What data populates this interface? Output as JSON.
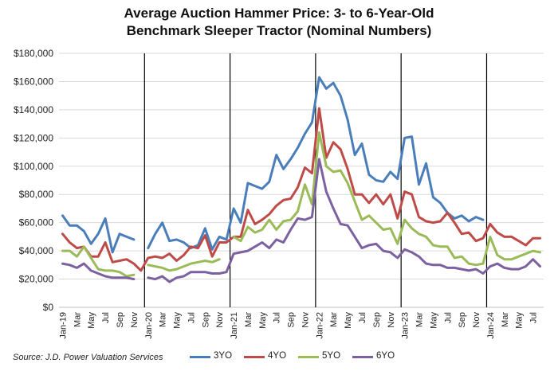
{
  "chart_data": {
    "type": "line",
    "title_lines": [
      "Average Auction Hammer Price: 3- to 6-Year-Old",
      "Benchmark Sleeper Tractor (Nominal Numbers)"
    ],
    "source": "Source: J.D. Power Valuation Services",
    "ylim": [
      0,
      180000
    ],
    "yticks": [
      "$0",
      "$20,000",
      "$40,000",
      "$60,000",
      "$80,000",
      "$100,000",
      "$120,000",
      "$140,000",
      "$160,000",
      "$180,000"
    ],
    "ytick_values": [
      0,
      20000,
      40000,
      60000,
      80000,
      100000,
      120000,
      140000,
      160000,
      180000
    ],
    "grid": "horizontal",
    "legend_position": "bottom",
    "x_categories": [
      "Jan-19",
      "Feb",
      "Mar",
      "Apr",
      "May",
      "Jun",
      "Jul",
      "Aug",
      "Sep",
      "Oct",
      "Nov",
      "Dec",
      "Jan-20",
      "Feb",
      "Mar",
      "Apr",
      "May",
      "Jun",
      "Jul",
      "Aug",
      "Sep",
      "Oct",
      "Nov",
      "Dec",
      "Jan-21",
      "Feb",
      "Mar",
      "Apr",
      "May",
      "Jun",
      "Jul",
      "Aug",
      "Sep",
      "Oct",
      "Nov",
      "Dec",
      "Jan-22",
      "Feb",
      "Mar",
      "Apr",
      "May",
      "Jun",
      "Jul",
      "Aug",
      "Sep",
      "Oct",
      "Nov",
      "Dec",
      "Jan-23",
      "Feb",
      "Mar",
      "Apr",
      "May",
      "Jun",
      "Jul",
      "Aug",
      "Sep",
      "Oct",
      "Nov",
      "Dec",
      "Jan-24",
      "Feb",
      "Mar",
      "Apr",
      "May",
      "Jun",
      "Jul",
      "Aug"
    ],
    "x_tick_labels": [
      "Jan-19",
      "Mar",
      "May",
      "Jul",
      "Sep",
      "Nov",
      "Jan-20",
      "Mar",
      "May",
      "Jul",
      "Sep",
      "Nov",
      "Jan-21",
      "Mar",
      "May",
      "Jul",
      "Sep",
      "Nov",
      "Jan-22",
      "Mar",
      "May",
      "Jul",
      "Sep",
      "Nov",
      "Jan-23",
      "Mar",
      "May",
      "Jul",
      "Sep",
      "Nov",
      "Jan-24",
      "Mar",
      "May",
      "Jul"
    ],
    "year_separators": [
      "Jan-20",
      "Jan-21",
      "Jan-22",
      "Jan-23",
      "Jan-24"
    ],
    "series": [
      {
        "name": "3YO",
        "color": "#4A7EBB",
        "values": [
          65000,
          58000,
          58000,
          54000,
          45000,
          52000,
          63000,
          39000,
          52000,
          50000,
          48000,
          null,
          42000,
          52000,
          60000,
          47000,
          48000,
          46000,
          42000,
          44000,
          56000,
          41000,
          50000,
          48000,
          70000,
          60000,
          88000,
          86000,
          84000,
          89000,
          108000,
          98000,
          105000,
          113000,
          123000,
          131000,
          163000,
          155000,
          159000,
          150000,
          133000,
          108000,
          116000,
          94000,
          90000,
          89000,
          96000,
          91000,
          120000,
          121000,
          87000,
          102000,
          78000,
          74000,
          67000,
          63000,
          65000,
          61000,
          64000,
          62000,
          null,
          null,
          null,
          null,
          null,
          null,
          null,
          null
        ]
      },
      {
        "name": "4YO",
        "color": "#BE4B48",
        "values": [
          52000,
          46000,
          42000,
          43000,
          36000,
          36000,
          46000,
          32000,
          33000,
          34000,
          31000,
          26000,
          35000,
          36000,
          35000,
          38000,
          33000,
          37000,
          43000,
          42000,
          51000,
          36000,
          46000,
          46000,
          50000,
          50000,
          69000,
          59000,
          62000,
          66000,
          72000,
          76000,
          77000,
          85000,
          99000,
          95000,
          141000,
          106000,
          117000,
          112000,
          98000,
          80000,
          80000,
          74000,
          80000,
          73000,
          80000,
          63000,
          82000,
          80000,
          64000,
          61000,
          60000,
          61000,
          67000,
          60000,
          52000,
          53000,
          47000,
          49000,
          59000,
          53000,
          50000,
          50000,
          47000,
          44000,
          49000,
          49000
        ]
      },
      {
        "name": "5YO",
        "color": "#9BBB59",
        "values": [
          40000,
          40000,
          36000,
          43000,
          35000,
          27000,
          26000,
          26000,
          25000,
          22000,
          23000,
          null,
          30000,
          29000,
          28000,
          26000,
          27000,
          29000,
          31000,
          32000,
          33000,
          32000,
          34000,
          null,
          50000,
          47000,
          57000,
          53000,
          55000,
          62000,
          55000,
          61000,
          62000,
          68000,
          87000,
          73000,
          124000,
          100000,
          96000,
          97000,
          88000,
          75000,
          62000,
          65000,
          60000,
          55000,
          56000,
          45000,
          62000,
          56000,
          52000,
          50000,
          44000,
          43000,
          43000,
          35000,
          36000,
          31000,
          30000,
          31000,
          50000,
          37000,
          34000,
          34000,
          36000,
          38000,
          40000,
          39000
        ]
      },
      {
        "name": "6YO",
        "color": "#7D60A0",
        "values": [
          31000,
          30000,
          28000,
          31000,
          26000,
          24000,
          22000,
          21000,
          21000,
          21000,
          20000,
          null,
          21000,
          20000,
          22000,
          18000,
          21000,
          22000,
          25000,
          25000,
          25000,
          24000,
          24000,
          25000,
          38000,
          39000,
          40000,
          43000,
          46000,
          42000,
          48000,
          46000,
          55000,
          63000,
          62000,
          64000,
          105000,
          82000,
          70000,
          59000,
          58000,
          50000,
          42000,
          44000,
          45000,
          40000,
          39000,
          35000,
          41000,
          39000,
          36000,
          31000,
          30000,
          30000,
          28000,
          28000,
          27000,
          26000,
          27000,
          24000,
          29000,
          31000,
          28000,
          27000,
          27000,
          29000,
          34000,
          29000
        ]
      }
    ]
  }
}
